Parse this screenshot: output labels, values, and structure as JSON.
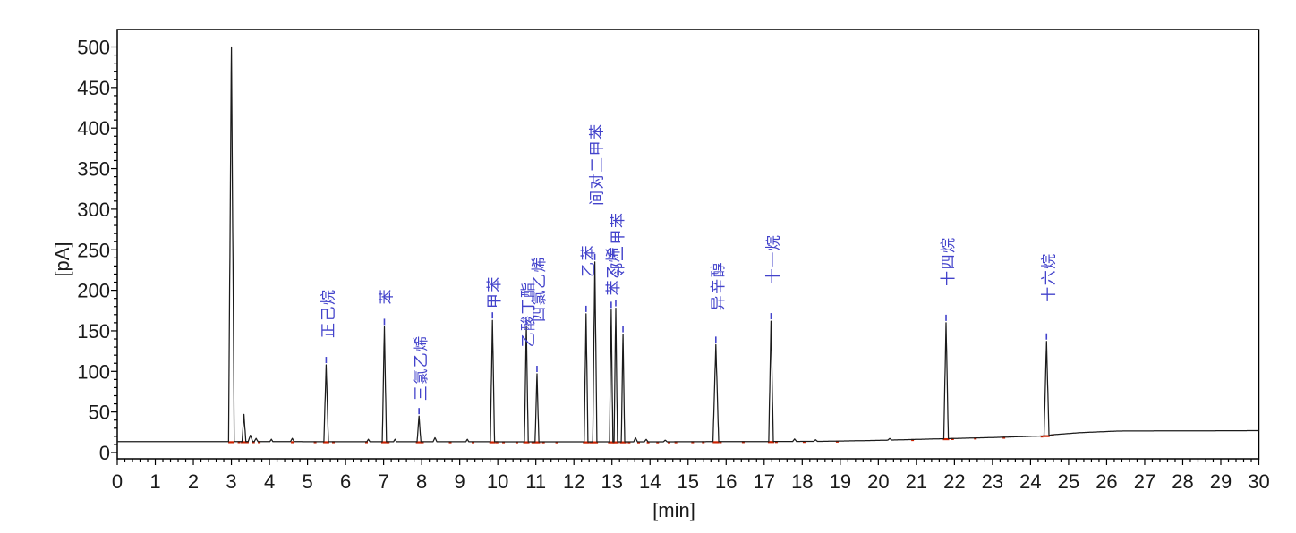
{
  "axis": {
    "x_label": "[min]",
    "y_label": "[pA]",
    "x_min": 0,
    "x_max": 30,
    "x_major_step": 1,
    "x_minor_step": 0.2,
    "y_min": 0,
    "y_max": 500,
    "y_major_step": 50,
    "y_minor_step": 10,
    "x_tick_labels": [
      "0",
      "1",
      "2",
      "3",
      "4",
      "5",
      "6",
      "7",
      "8",
      "9",
      "10",
      "11",
      "12",
      "13",
      "14",
      "15",
      "16",
      "17",
      "18",
      "19",
      "20",
      "21",
      "22",
      "23",
      "24",
      "25",
      "26",
      "27",
      "28",
      "29",
      "30"
    ],
    "y_tick_labels": [
      "0",
      "50",
      "100",
      "150",
      "200",
      "250",
      "300",
      "350",
      "400",
      "450",
      "500"
    ]
  },
  "colors": {
    "background": "#ffffff",
    "trace": "#1b1b1b",
    "axis": "#000000",
    "peak_label": "#4343cb",
    "peak_marker": "#4343cb",
    "integration_mark": "#cc2200"
  },
  "chart_data": {
    "type": "line",
    "title": "",
    "xlabel": "[min]",
    "ylabel": "[pA]",
    "xlim": [
      0,
      30
    ],
    "ylim": [
      0,
      500
    ],
    "grid": false,
    "legend": false,
    "baseline_pA": [
      [
        0,
        13.5
      ],
      [
        14,
        13.2
      ],
      [
        18.5,
        13.8
      ],
      [
        20,
        15
      ],
      [
        21.5,
        16.8
      ],
      [
        23,
        18.5
      ],
      [
        24.35,
        20.5
      ],
      [
        24.6,
        22
      ],
      [
        25.3,
        24.5
      ],
      [
        26.3,
        26.5
      ],
      [
        30,
        27
      ]
    ],
    "peaks": [
      {
        "rt": 3.0,
        "apex_pA": 500,
        "label": "",
        "w": 0.075,
        "marker": false,
        "label_dy": 0
      },
      {
        "rt": 3.33,
        "apex_pA": 47,
        "label": "",
        "w": 0.05,
        "marker": false,
        "label_dy": 0
      },
      {
        "rt": 5.49,
        "apex_pA": 108,
        "label": "正己烷",
        "w": 0.06,
        "marker": true,
        "label_dy": 30
      },
      {
        "rt": 7.02,
        "apex_pA": 155,
        "label": "苯",
        "w": 0.055,
        "marker": true,
        "label_dy": 25
      },
      {
        "rt": 7.93,
        "apex_pA": 45,
        "label": "三氯乙烯",
        "w": 0.05,
        "marker": true,
        "label_dy": 17
      },
      {
        "rt": 9.86,
        "apex_pA": 163,
        "label": "甲苯",
        "w": 0.055,
        "marker": true,
        "label_dy": 13
      },
      {
        "rt": 10.75,
        "apex_pA": 155,
        "label": "乙酸丁酯",
        "w": 0.05,
        "marker": true,
        "label_dy": -23
      },
      {
        "rt": 11.03,
        "apex_pA": 97,
        "label": "四氯乙烯",
        "w": 0.05,
        "marker": true,
        "label_dy": 58
      },
      {
        "rt": 12.32,
        "apex_pA": 171,
        "label": "乙苯",
        "w": 0.05,
        "marker": true,
        "label_dy": 41
      },
      {
        "rt": 12.55,
        "apex_pA": 235,
        "label": "间对二甲苯",
        "w": 0.055,
        "marker": true,
        "label_dy": 63
      },
      {
        "rt": 12.98,
        "apex_pA": 176,
        "label": "苯乙烯",
        "w": 0.045,
        "marker": true,
        "label_dy": 16
      },
      {
        "rt": 13.1,
        "apex_pA": 178,
        "label": "邻二甲苯",
        "w": 0.045,
        "marker": true,
        "label_dy": 34
      },
      {
        "rt": 13.29,
        "apex_pA": 146,
        "label": "",
        "w": 0.045,
        "marker": true,
        "label_dy": 0
      },
      {
        "rt": 15.73,
        "apex_pA": 133,
        "label": "异辛醇",
        "w": 0.075,
        "marker": true,
        "label_dy": 38
      },
      {
        "rt": 17.18,
        "apex_pA": 162,
        "label": "十一烷",
        "w": 0.06,
        "marker": true,
        "label_dy": 42
      },
      {
        "rt": 21.78,
        "apex_pA": 160,
        "label": "十四烷",
        "w": 0.06,
        "marker": true,
        "label_dy": 41
      },
      {
        "rt": 24.42,
        "apex_pA": 137,
        "label": "十六烷",
        "w": 0.065,
        "marker": true,
        "label_dy": 44
      }
    ],
    "minor_bumps": [
      {
        "rt": 3.5,
        "h": 8,
        "w": 0.06
      },
      {
        "rt": 3.65,
        "h": 4,
        "w": 0.05
      },
      {
        "rt": 4.05,
        "h": 3,
        "w": 0.04
      },
      {
        "rt": 4.6,
        "h": 4,
        "w": 0.05
      },
      {
        "rt": 6.6,
        "h": 3,
        "w": 0.04
      },
      {
        "rt": 7.3,
        "h": 3,
        "w": 0.04
      },
      {
        "rt": 8.35,
        "h": 5,
        "w": 0.05
      },
      {
        "rt": 9.2,
        "h": 3,
        "w": 0.04
      },
      {
        "rt": 13.62,
        "h": 5,
        "w": 0.05
      },
      {
        "rt": 13.9,
        "h": 3,
        "w": 0.05
      },
      {
        "rt": 14.4,
        "h": 2,
        "w": 0.05
      },
      {
        "rt": 17.8,
        "h": 3,
        "w": 0.05
      },
      {
        "rt": 18.35,
        "h": 2,
        "w": 0.05
      },
      {
        "rt": 20.3,
        "h": 2,
        "w": 0.05
      }
    ],
    "integration_marks_min": [
      3.2,
      3.42,
      3.58,
      3.73,
      4.6,
      5.2,
      5.68,
      6.55,
      7.12,
      8.02,
      8.75,
      9.35,
      9.98,
      10.15,
      10.5,
      10.92,
      11.2,
      11.55,
      12.44,
      13.45,
      13.7,
      13.95,
      14.2,
      14.5,
      14.68,
      15.12,
      15.4,
      15.85,
      16.45,
      17.32,
      18.05,
      18.92,
      20.9,
      21.95,
      22.55,
      23.3,
      24.3,
      24.58
    ]
  }
}
